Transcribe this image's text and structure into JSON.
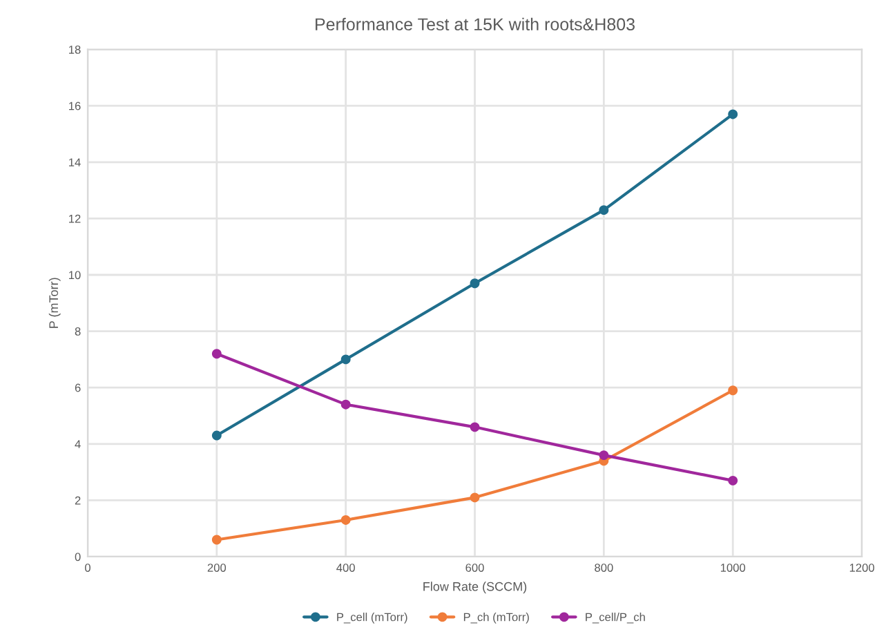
{
  "chart_data": {
    "type": "line",
    "title": "Performance Test at 15K with roots&H803",
    "xlabel": "Flow Rate (SCCM)",
    "ylabel": "P (mTorr)",
    "x": [
      200,
      400,
      600,
      800,
      1000
    ],
    "series": [
      {
        "name": "P_cell (mTorr)",
        "color": "#1f6e8c",
        "values": [
          4.3,
          7.0,
          9.7,
          12.3,
          15.7
        ]
      },
      {
        "name": "P_ch (mTorr)",
        "color": "#f07c3a",
        "values": [
          0.6,
          1.3,
          2.1,
          3.4,
          5.9
        ]
      },
      {
        "name": "P_cell/P_ch",
        "color": "#a0279c",
        "values": [
          7.2,
          5.4,
          4.6,
          3.6,
          2.7
        ]
      }
    ],
    "xlim": [
      0,
      1200
    ],
    "xticks": [
      0,
      200,
      400,
      600,
      800,
      1000,
      1200
    ],
    "ylim": [
      0,
      18
    ],
    "yticks": [
      0,
      2,
      4,
      6,
      8,
      10,
      12,
      14,
      16,
      18
    ],
    "grid": true,
    "legend": "bottom",
    "marker": "circle",
    "line_style": "solid"
  }
}
